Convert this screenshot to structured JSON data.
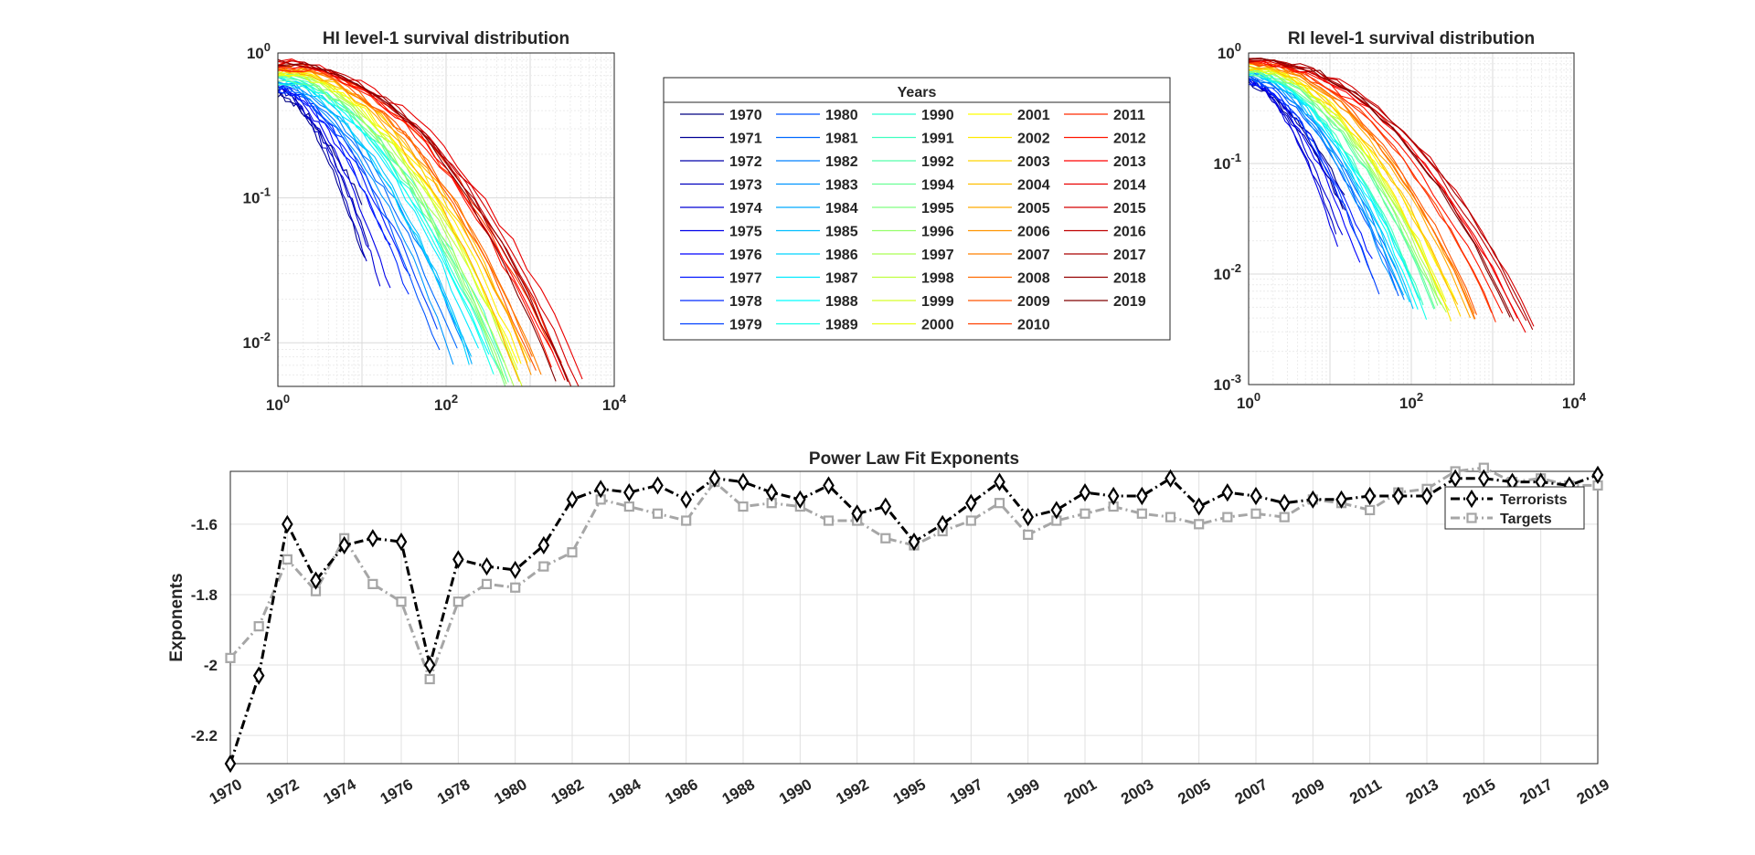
{
  "chart_data": [
    {
      "type": "line",
      "title": "HI level-1 survival distribution",
      "xscale": "log",
      "yscale": "log",
      "xlim": [
        1,
        10000
      ],
      "ylim": [
        0.005,
        1
      ],
      "x_tick_labels": [
        {
          "base": "10",
          "exp": "0"
        },
        {
          "base": "10",
          "exp": "2"
        },
        {
          "base": "10",
          "exp": "4"
        }
      ],
      "y_tick_labels": [
        {
          "base": "10",
          "exp": "0"
        },
        {
          "base": "10",
          "exp": "-1"
        },
        {
          "base": "10",
          "exp": "-2"
        }
      ],
      "grid": true,
      "series_note": "one survival curve per year 1970-2019, colored by year (jet colormap)",
      "series": [
        {
          "name": "1970",
          "xmax": 8,
          "ymin": 0.08
        },
        {
          "name": "1971",
          "xmax": 10,
          "ymin": 0.04
        },
        {
          "name": "1972",
          "xmax": 10,
          "ymin": 0.04
        },
        {
          "name": "1975",
          "xmax": 25,
          "ymin": 0.025
        },
        {
          "name": "1976",
          "xmax": 20,
          "ymin": 0.04
        },
        {
          "name": "1980",
          "xmax": 100,
          "ymin": 0.009
        },
        {
          "name": "1990",
          "xmax": 400,
          "ymin": 0.007
        },
        {
          "name": "1995",
          "xmax": 600,
          "ymin": 0.006
        },
        {
          "name": "2000",
          "xmax": 700,
          "ymin": 0.006
        },
        {
          "name": "2005",
          "xmax": 900,
          "ymin": 0.007
        },
        {
          "name": "2010",
          "xmax": 1500,
          "ymin": 0.008
        },
        {
          "name": "2015",
          "xmax": 4000,
          "ymin": 0.005
        },
        {
          "name": "2019",
          "xmax": 2000,
          "ymin": 0.006
        }
      ]
    },
    {
      "type": "line",
      "title": "RI level-1 survival distribution",
      "xscale": "log",
      "yscale": "log",
      "xlim": [
        1,
        10000
      ],
      "ylim": [
        0.001,
        1
      ],
      "x_tick_labels": [
        {
          "base": "10",
          "exp": "0"
        },
        {
          "base": "10",
          "exp": "2"
        },
        {
          "base": "10",
          "exp": "4"
        }
      ],
      "y_tick_labels": [
        {
          "base": "10",
          "exp": "0"
        },
        {
          "base": "10",
          "exp": "-1"
        },
        {
          "base": "10",
          "exp": "-2"
        },
        {
          "base": "10",
          "exp": "-3"
        }
      ],
      "grid": true,
      "series_note": "one survival curve per year 1970-2019, colored by year (jet colormap)",
      "series": [
        {
          "name": "1970",
          "xmax": 12,
          "ymin": 0.05
        },
        {
          "name": "1975",
          "xmax": 15,
          "ymin": 0.02
        },
        {
          "name": "1980",
          "xmax": 60,
          "ymin": 0.006
        },
        {
          "name": "1990",
          "xmax": 150,
          "ymin": 0.005
        },
        {
          "name": "2000",
          "xmax": 300,
          "ymin": 0.005
        },
        {
          "name": "2010",
          "xmax": 800,
          "ymin": 0.004
        },
        {
          "name": "2015",
          "xmax": 3000,
          "ymin": 0.0035
        },
        {
          "name": "2019",
          "xmax": 2000,
          "ymin": 0.0035
        }
      ]
    },
    {
      "type": "line",
      "title": "Power Law Fit Exponents",
      "ylabel": "Exponents",
      "xlabel": "",
      "ylim": [
        -2.28,
        -1.45
      ],
      "y_ticks": [
        -1.6,
        -1.8,
        -2,
        -2.2
      ],
      "y_tick_labels": [
        "-1.6",
        "-1.8",
        "-2",
        "-2.2"
      ],
      "x_tick_labels": [
        "1970",
        "1972",
        "1974",
        "1976",
        "1978",
        "1980",
        "1982",
        "1984",
        "1986",
        "1988",
        "1990",
        "1992",
        "1995",
        "1997",
        "1999",
        "2001",
        "2003",
        "2005",
        "2007",
        "2009",
        "2011",
        "2013",
        "2015",
        "2017",
        "2019"
      ],
      "legend_position": "top-right",
      "grid": true,
      "categories": [
        "1970",
        "1971",
        "1972",
        "1973",
        "1974",
        "1975",
        "1976",
        "1977",
        "1978",
        "1979",
        "1980",
        "1981",
        "1982",
        "1983",
        "1984",
        "1985",
        "1986",
        "1987",
        "1988",
        "1989",
        "1990",
        "1991",
        "1992",
        "1994",
        "1995",
        "1996",
        "1997",
        "1998",
        "1999",
        "2000",
        "2001",
        "2002",
        "2003",
        "2004",
        "2005",
        "2006",
        "2007",
        "2008",
        "2009",
        "2010",
        "2011",
        "2012",
        "2013",
        "2014",
        "2015",
        "2016",
        "2017",
        "2018",
        "2019"
      ],
      "series": [
        {
          "name": "Terrorists",
          "color": "#000000",
          "marker": "diamond",
          "values": [
            -2.28,
            -2.03,
            -1.6,
            -1.76,
            -1.66,
            -1.64,
            -1.65,
            -2.0,
            -1.7,
            -1.72,
            -1.73,
            -1.66,
            -1.53,
            -1.5,
            -1.51,
            -1.49,
            -1.53,
            -1.47,
            -1.48,
            -1.51,
            -1.53,
            -1.49,
            -1.57,
            -1.55,
            -1.65,
            -1.6,
            -1.54,
            -1.48,
            -1.58,
            -1.56,
            -1.51,
            -1.52,
            -1.52,
            -1.47,
            -1.55,
            -1.51,
            -1.52,
            -1.54,
            -1.53,
            -1.53,
            -1.52,
            -1.52,
            -1.52,
            -1.47,
            -1.47,
            -1.48,
            -1.48,
            -1.49,
            -1.46
          ]
        },
        {
          "name": "Targets",
          "color": "#a6a6a6",
          "marker": "square",
          "values": [
            -1.98,
            -1.89,
            -1.7,
            -1.79,
            -1.64,
            -1.77,
            -1.82,
            -2.04,
            -1.82,
            -1.77,
            -1.78,
            -1.72,
            -1.68,
            -1.53,
            -1.55,
            -1.57,
            -1.59,
            -1.48,
            -1.55,
            -1.54,
            -1.55,
            -1.59,
            -1.59,
            -1.64,
            -1.66,
            -1.62,
            -1.59,
            -1.54,
            -1.63,
            -1.59,
            -1.57,
            -1.55,
            -1.57,
            -1.58,
            -1.6,
            -1.58,
            -1.57,
            -1.58,
            -1.53,
            -1.54,
            -1.56,
            -1.51,
            -1.5,
            -1.45,
            -1.44,
            -1.48,
            -1.47,
            -1.49,
            -1.49
          ]
        }
      ]
    }
  ],
  "legend_box": {
    "title": "Years",
    "years": [
      "1970",
      "1971",
      "1972",
      "1973",
      "1974",
      "1975",
      "1976",
      "1977",
      "1978",
      "1979",
      "1980",
      "1981",
      "1982",
      "1983",
      "1984",
      "1985",
      "1986",
      "1987",
      "1988",
      "1989",
      "1990",
      "1991",
      "1992",
      "1994",
      "1995",
      "1996",
      "1997",
      "1998",
      "1999",
      "2000",
      "2001",
      "2002",
      "2003",
      "2004",
      "2005",
      "2006",
      "2007",
      "2008",
      "2009",
      "2010",
      "2011",
      "2012",
      "2013",
      "2014",
      "2015",
      "2016",
      "2017",
      "2018",
      "2019"
    ]
  }
}
